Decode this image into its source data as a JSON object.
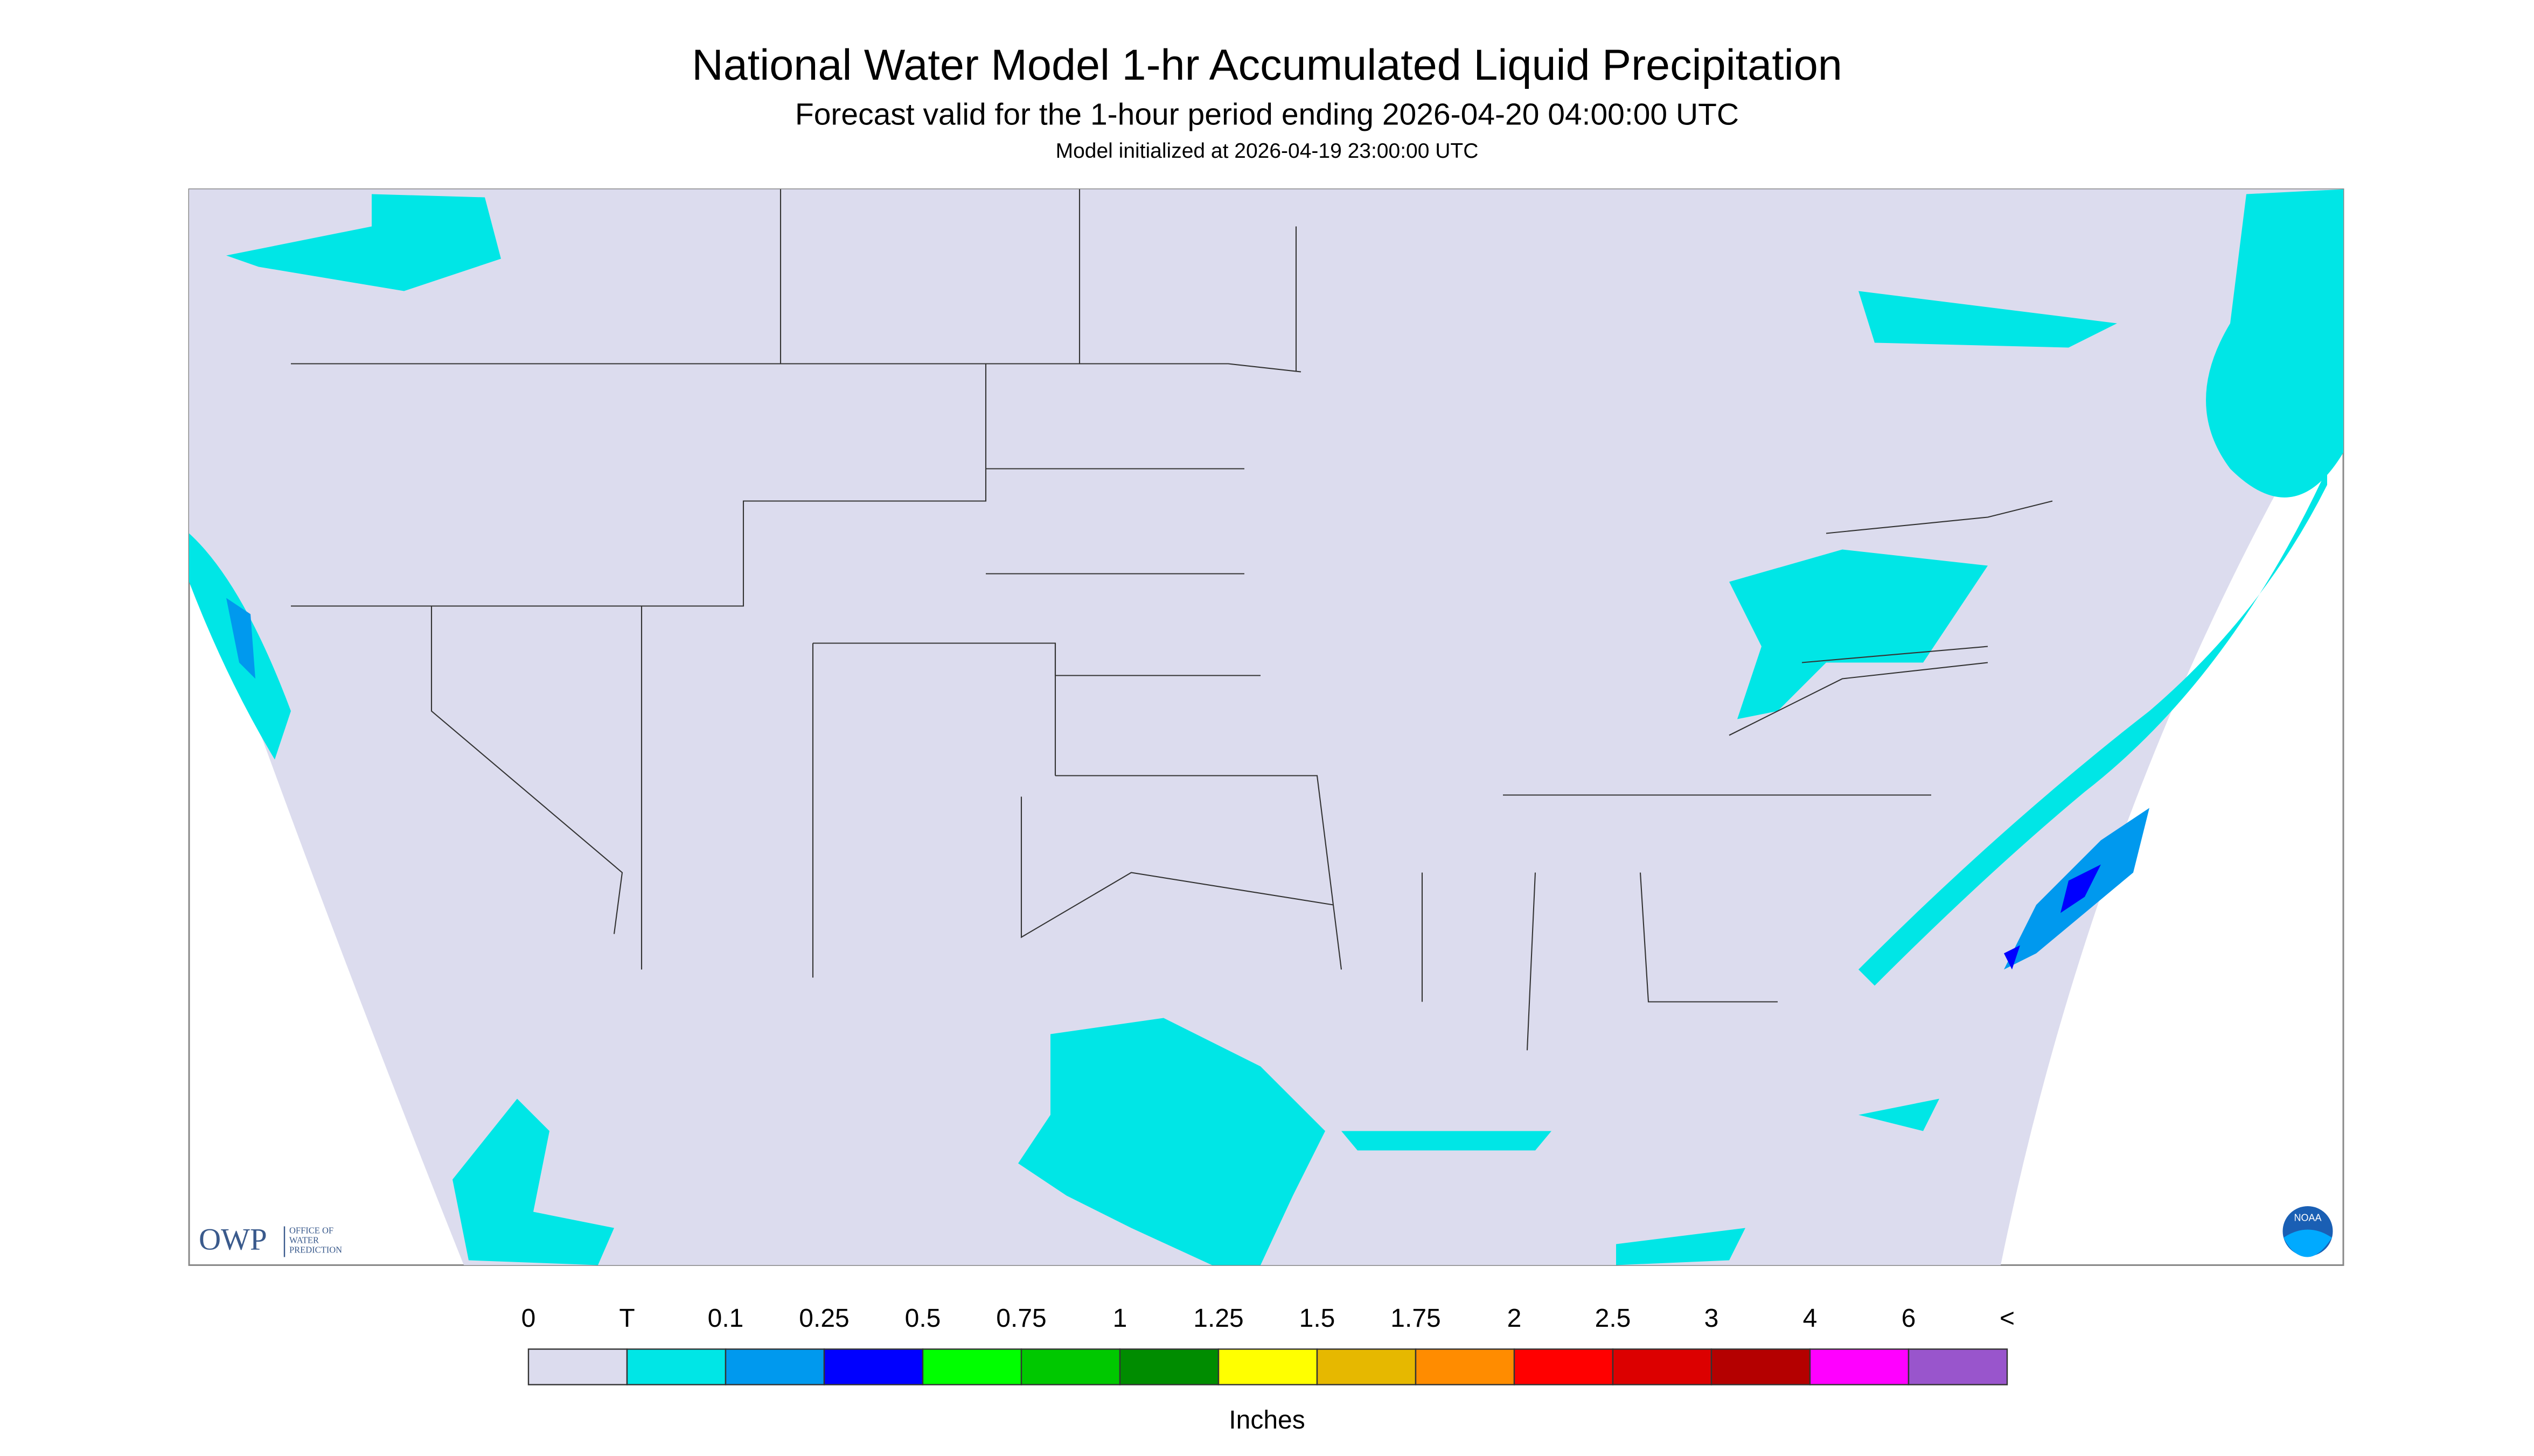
{
  "header": {
    "title": "National Water Model 1-hr Accumulated Liquid Precipitation",
    "subtitle": "Forecast valid for the 1-hour period ending 2026-04-20 04:00:00 UTC",
    "init": "Model initialized at 2026-04-19 23:00:00 UTC"
  },
  "logo": {
    "abbr": "OWP",
    "lines": [
      "OFFICE OF",
      "WATER",
      "PREDICTION"
    ],
    "noaa": "NOAA"
  },
  "legend": {
    "labels": [
      "0",
      "T",
      "0.1",
      "0.25",
      "0.5",
      "0.75",
      "1",
      "1.25",
      "1.5",
      "1.75",
      "2",
      "2.5",
      "3",
      "4",
      "6",
      "<"
    ],
    "colors": [
      "#dcdcee",
      "#00e6e6",
      "#0099ee",
      "#0000ff",
      "#00ff00",
      "#00c800",
      "#008c00",
      "#ffff00",
      "#e6b800",
      "#ff8c00",
      "#ff0000",
      "#dc0000",
      "#b40000",
      "#ff00ff",
      "#9955cc"
    ],
    "unit": "Inches"
  }
}
